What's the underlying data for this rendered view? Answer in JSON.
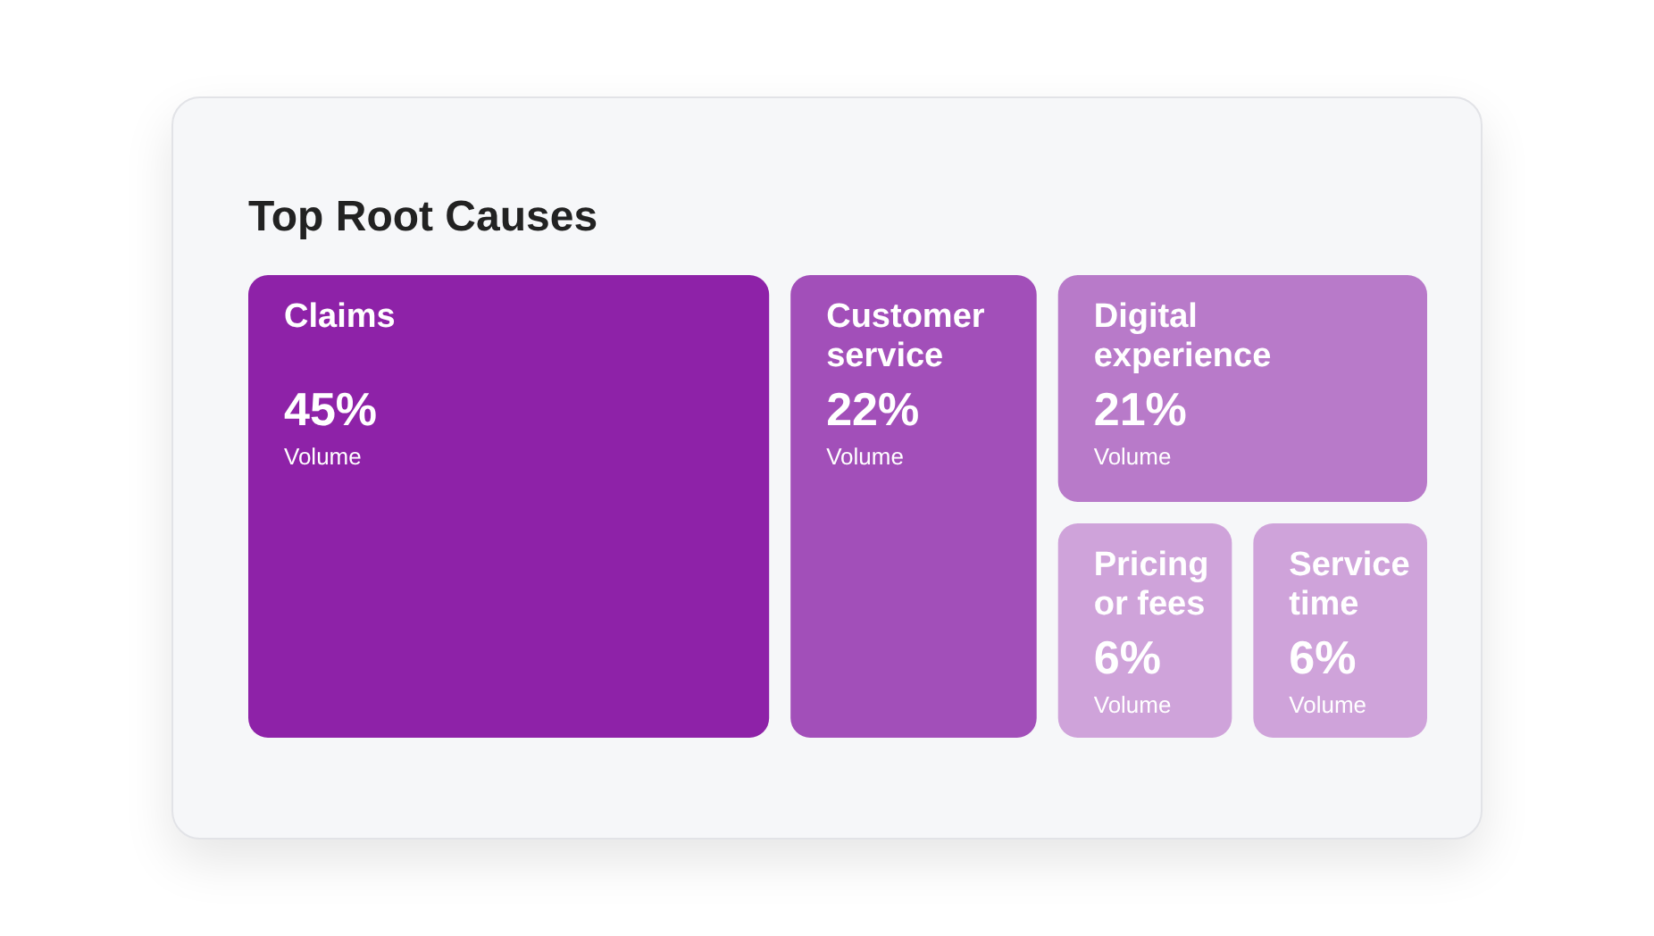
{
  "chart_data": {
    "type": "other",
    "title": "Top Root Causes",
    "ylabel": "Volume",
    "categories": [
      "Claims",
      "Customer service",
      "Digital experience",
      "Pricing or fees",
      "Service time"
    ],
    "values": [
      45,
      22,
      21,
      6,
      6
    ],
    "value_labels": [
      "45%",
      "22%",
      "21%",
      "6%",
      "6%"
    ],
    "colors": [
      "#8e22a8",
      "#a24fb9",
      "#b87ac9",
      "#cfa3da",
      "#cfa3da"
    ]
  }
}
